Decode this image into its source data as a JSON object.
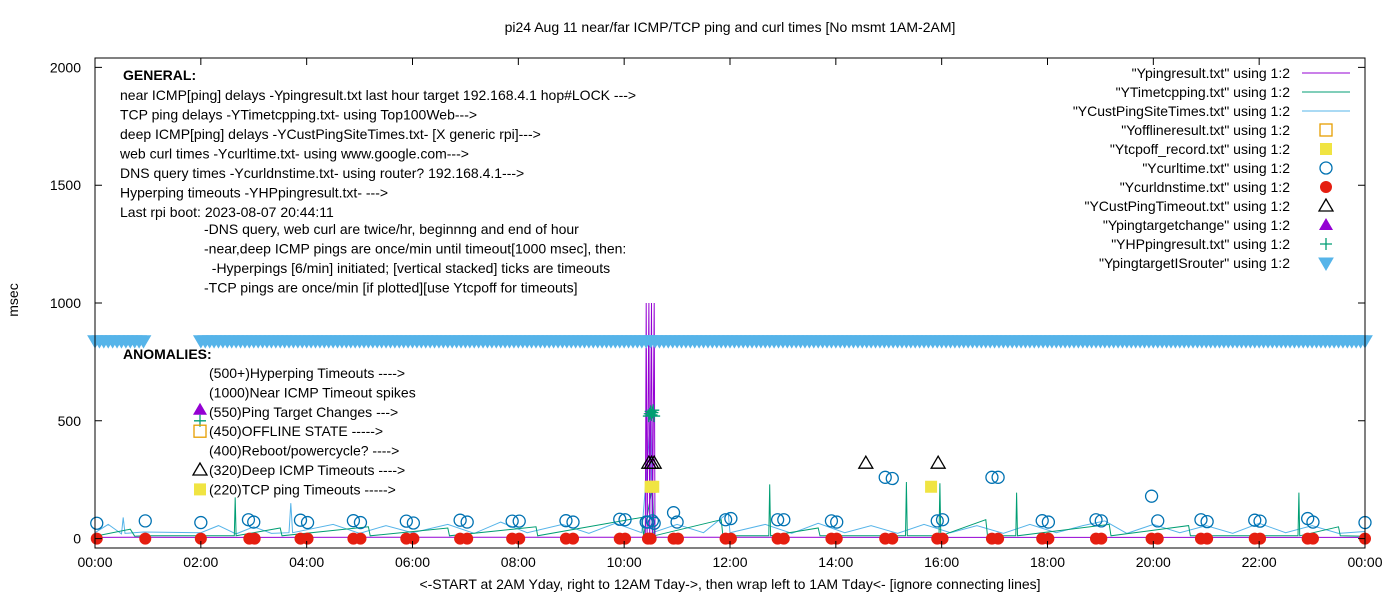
{
  "chart_data": {
    "type": "line",
    "title": "pi24 Aug 11  near/far ICMP/TCP ping and curl times [No msmt 1AM-2AM]",
    "xlabel": "<-START at 2AM Yday, right to 12AM Tday->, then wrap left to 1AM Tday<- [ignore connecting lines]",
    "ylabel": "msec",
    "xlim": [
      "00:00",
      "24:00"
    ],
    "ylim": [
      -40,
      2040
    ],
    "x_ticks": [
      "00:00",
      "02:00",
      "04:00",
      "06:00",
      "08:00",
      "10:00",
      "12:00",
      "14:00",
      "16:00",
      "18:00",
      "20:00",
      "22:00",
      "00:00"
    ],
    "y_ticks": [
      0,
      500,
      1000,
      1500,
      2000
    ],
    "grid": false,
    "legend_placement": "top-right",
    "series": [
      {
        "name": "\"Ypingresult.txt\" using 1:2",
        "style": "line",
        "color": "#9400d3",
        "points": [
          [
            "00:00",
            5
          ],
          [
            "00:55",
            6
          ],
          [
            "02:00",
            5
          ],
          [
            "06:00",
            6
          ],
          [
            "10:24",
            6
          ],
          [
            "10:25",
            1000
          ],
          [
            "10:26",
            6
          ],
          [
            "10:28",
            1000
          ],
          [
            "10:29",
            6
          ],
          [
            "10:31",
            1000
          ],
          [
            "10:32",
            6
          ],
          [
            "10:34",
            1000
          ],
          [
            "10:35",
            6
          ],
          [
            "16:00",
            5
          ],
          [
            "24:00",
            5
          ]
        ]
      },
      {
        "name": "\"YTimetcpping.txt\" using 1:2",
        "style": "line",
        "color": "#009e73",
        "points": [
          [
            "00:00",
            10
          ],
          [
            "00:40",
            40
          ],
          [
            "00:45",
            10
          ],
          [
            "00:55",
            12
          ],
          [
            "02:00",
            12
          ],
          [
            "02:38",
            12
          ],
          [
            "02:39",
            175
          ],
          [
            "02:40",
            12
          ],
          [
            "03:30",
            45
          ],
          [
            "03:32",
            12
          ],
          [
            "05:10",
            50
          ],
          [
            "05:12",
            12
          ],
          [
            "06:40",
            45
          ],
          [
            "06:42",
            12
          ],
          [
            "08:20",
            50
          ],
          [
            "08:22",
            12
          ],
          [
            "10:20",
            90
          ],
          [
            "10:22",
            12
          ],
          [
            "10:32",
            220
          ],
          [
            "10:34",
            12
          ],
          [
            "11:50",
            80
          ],
          [
            "11:52",
            12
          ],
          [
            "12:44",
            12
          ],
          [
            "12:45",
            230
          ],
          [
            "12:46",
            12
          ],
          [
            "13:40",
            45
          ],
          [
            "13:42",
            12
          ],
          [
            "15:19",
            12
          ],
          [
            "15:20",
            240
          ],
          [
            "15:21",
            12
          ],
          [
            "15:57",
            12
          ],
          [
            "15:58",
            235
          ],
          [
            "15:59",
            12
          ],
          [
            "16:50",
            80
          ],
          [
            "16:52",
            12
          ],
          [
            "17:24",
            12
          ],
          [
            "17:25",
            195
          ],
          [
            "17:26",
            12
          ],
          [
            "19:10",
            60
          ],
          [
            "19:12",
            12
          ],
          [
            "20:40",
            55
          ],
          [
            "20:42",
            12
          ],
          [
            "22:44",
            12
          ],
          [
            "22:45",
            195
          ],
          [
            "22:46",
            12
          ],
          [
            "23:30",
            50
          ],
          [
            "23:32",
            12
          ],
          [
            "24:00",
            10
          ]
        ]
      },
      {
        "name": "\"YCustPingSiteTimes.txt\" using 1:2",
        "style": "line",
        "color": "#56b4e9",
        "points": [
          [
            "00:00",
            25
          ],
          [
            "00:15",
            60
          ],
          [
            "00:30",
            20
          ],
          [
            "00:32",
            90
          ],
          [
            "00:34",
            22
          ],
          [
            "00:55",
            28
          ],
          [
            "02:00",
            25
          ],
          [
            "02:20",
            55
          ],
          [
            "02:40",
            20
          ],
          [
            "03:00",
            50
          ],
          [
            "03:20",
            22
          ],
          [
            "03:40",
            25
          ],
          [
            "03:42",
            150
          ],
          [
            "03:44",
            25
          ],
          [
            "04:30",
            60
          ],
          [
            "05:00",
            22
          ],
          [
            "05:30",
            55
          ],
          [
            "06:00",
            25
          ],
          [
            "06:40",
            60
          ],
          [
            "07:10",
            22
          ],
          [
            "07:40",
            70
          ],
          [
            "08:10",
            25
          ],
          [
            "08:50",
            60
          ],
          [
            "09:20",
            22
          ],
          [
            "09:50",
            65
          ],
          [
            "10:20",
            25
          ],
          [
            "10:30",
            500
          ],
          [
            "10:32",
            25
          ],
          [
            "11:00",
            60
          ],
          [
            "11:30",
            25
          ],
          [
            "11:58",
            110
          ],
          [
            "12:00",
            25
          ],
          [
            "12:40",
            60
          ],
          [
            "13:10",
            22
          ],
          [
            "13:40",
            65
          ],
          [
            "14:10",
            25
          ],
          [
            "14:40",
            55
          ],
          [
            "15:10",
            22
          ],
          [
            "15:40",
            60
          ],
          [
            "16:10",
            25
          ],
          [
            "16:40",
            55
          ],
          [
            "17:10",
            22
          ],
          [
            "17:40",
            60
          ],
          [
            "18:10",
            25
          ],
          [
            "18:40",
            55
          ],
          [
            "19:05",
            75
          ],
          [
            "19:30",
            22
          ],
          [
            "20:00",
            60
          ],
          [
            "20:30",
            25
          ],
          [
            "21:00",
            55
          ],
          [
            "21:30",
            22
          ],
          [
            "22:00",
            65
          ],
          [
            "22:30",
            25
          ],
          [
            "23:00",
            55
          ],
          [
            "23:30",
            22
          ],
          [
            "24:00",
            30
          ]
        ]
      },
      {
        "name": "\"Yofflineresult.txt\" using 1:2",
        "style": "open-square",
        "color": "#e69f00",
        "points": []
      },
      {
        "name": "\"Ytcpoff_record.txt\" using 1:2",
        "style": "filled-square",
        "color": "#f0e442",
        "points": [
          [
            "10:30",
            220
          ],
          [
            "10:33",
            220
          ],
          [
            "15:48",
            220
          ]
        ]
      },
      {
        "name": "\"Ycurltime.txt\" using 1:2",
        "style": "open-circle",
        "color": "#0072b2",
        "points": [
          [
            "00:02",
            65
          ],
          [
            "00:57",
            75
          ],
          [
            "02:00",
            68
          ],
          [
            "02:54",
            80
          ],
          [
            "03:00",
            70
          ],
          [
            "03:53",
            78
          ],
          [
            "04:01",
            68
          ],
          [
            "04:53",
            76
          ],
          [
            "05:01",
            68
          ],
          [
            "05:53",
            74
          ],
          [
            "06:01",
            66
          ],
          [
            "06:54",
            78
          ],
          [
            "07:02",
            70
          ],
          [
            "07:53",
            74
          ],
          [
            "08:01",
            74
          ],
          [
            "08:54",
            76
          ],
          [
            "09:02",
            70
          ],
          [
            "09:55",
            82
          ],
          [
            "10:01",
            80
          ],
          [
            "10:25",
            70
          ],
          [
            "10:27",
            70
          ],
          [
            "10:32",
            75
          ],
          [
            "10:34",
            65
          ],
          [
            "10:56",
            110
          ],
          [
            "11:00",
            70
          ],
          [
            "11:55",
            80
          ],
          [
            "12:01",
            85
          ],
          [
            "12:54",
            80
          ],
          [
            "13:01",
            80
          ],
          [
            "13:55",
            75
          ],
          [
            "14:01",
            70
          ],
          [
            "14:56",
            260
          ],
          [
            "15:04",
            255
          ],
          [
            "15:55",
            75
          ],
          [
            "16:01",
            80
          ],
          [
            "16:57",
            260
          ],
          [
            "17:04",
            260
          ],
          [
            "17:54",
            76
          ],
          [
            "18:01",
            70
          ],
          [
            "18:55",
            80
          ],
          [
            "19:01",
            75
          ],
          [
            "19:58",
            180
          ],
          [
            "20:05",
            75
          ],
          [
            "20:54",
            80
          ],
          [
            "21:01",
            72
          ],
          [
            "21:55",
            78
          ],
          [
            "22:01",
            74
          ],
          [
            "22:55",
            85
          ],
          [
            "23:01",
            70
          ],
          [
            "24:00",
            68
          ]
        ]
      },
      {
        "name": "\"Ycurldnstime.txt\" using 1:2",
        "style": "filled-circle",
        "color": "#e51e10",
        "points": [
          [
            "00:02",
            0
          ],
          [
            "00:57",
            0
          ],
          [
            "02:00",
            0
          ],
          [
            "02:55",
            0
          ],
          [
            "03:01",
            0
          ],
          [
            "03:53",
            0
          ],
          [
            "04:01",
            0
          ],
          [
            "04:53",
            0
          ],
          [
            "05:01",
            0
          ],
          [
            "05:53",
            0
          ],
          [
            "06:01",
            0
          ],
          [
            "06:54",
            0
          ],
          [
            "07:02",
            0
          ],
          [
            "07:53",
            0
          ],
          [
            "08:01",
            0
          ],
          [
            "08:54",
            0
          ],
          [
            "09:02",
            0
          ],
          [
            "09:55",
            0
          ],
          [
            "10:01",
            0
          ],
          [
            "10:27",
            0
          ],
          [
            "10:30",
            0
          ],
          [
            "10:56",
            0
          ],
          [
            "11:01",
            0
          ],
          [
            "11:55",
            0
          ],
          [
            "12:01",
            0
          ],
          [
            "12:54",
            0
          ],
          [
            "13:01",
            0
          ],
          [
            "13:55",
            0
          ],
          [
            "14:01",
            0
          ],
          [
            "14:56",
            0
          ],
          [
            "15:04",
            0
          ],
          [
            "15:55",
            0
          ],
          [
            "16:01",
            0
          ],
          [
            "16:57",
            0
          ],
          [
            "17:04",
            0
          ],
          [
            "17:54",
            0
          ],
          [
            "18:01",
            0
          ],
          [
            "18:55",
            0
          ],
          [
            "19:01",
            0
          ],
          [
            "19:58",
            0
          ],
          [
            "20:05",
            0
          ],
          [
            "20:54",
            0
          ],
          [
            "21:01",
            0
          ],
          [
            "21:55",
            0
          ],
          [
            "22:01",
            0
          ],
          [
            "22:55",
            0
          ],
          [
            "23:01",
            0
          ],
          [
            "24:00",
            0
          ]
        ]
      },
      {
        "name": "\"YCustPingTimeout.txt\" using 1:2",
        "style": "open-triangle",
        "color": "#000000",
        "points": [
          [
            "10:28",
            320
          ],
          [
            "10:31",
            320
          ],
          [
            "10:34",
            320
          ],
          [
            "14:34",
            320
          ],
          [
            "15:56",
            320
          ]
        ]
      },
      {
        "name": "\"Ypingtargetchange\" using 1:2",
        "style": "filled-triangle",
        "color": "#9400d3",
        "points": []
      },
      {
        "name": "\"YHPpingresult.txt\" using 1:2",
        "style": "plus",
        "color": "#009e73",
        "points": [
          [
            "10:28",
            520
          ],
          [
            "10:29",
            530
          ],
          [
            "10:30",
            540
          ],
          [
            "10:31",
            525
          ],
          [
            "10:32",
            535
          ],
          [
            "10:33",
            545
          ],
          [
            "10:34",
            520
          ]
        ]
      },
      {
        "name": "\"YpingtargetISrouter\" using 1:2",
        "style": "open-inverted-triangle",
        "color": "#56b4e9",
        "value": 840,
        "ranges": [
          [
            "00:00",
            "00:55"
          ],
          [
            "02:00",
            "24:00"
          ]
        ]
      }
    ],
    "annotations": {
      "general_heading": "GENERAL:",
      "general_lines": [
        "near ICMP[ping] delays -Ypingresult.txt last hour target 192.168.4.1 hop#LOCK --->",
        "TCP ping delays -YTimetcpping.txt- using Top100Web--->",
        "deep ICMP[ping] delays -YCustPingSiteTimes.txt- [X generic rpi]--->",
        "web curl times -Ycurltime.txt- using www.google.com--->",
        "DNS query times -Ycurldnstime.txt- using router? 192.168.4.1--->",
        "Hyperping timeouts -YHPpingresult.txt- --->",
        "Last rpi boot: 2023-08-07 20:44:11"
      ],
      "notes": [
        "-DNS query, web curl are twice/hr, beginnng and end of hour",
        "-near,deep ICMP pings are once/min until timeout[1000 msec], then:",
        "  -Hyperpings [6/min] initiated; [vertical stacked] ticks are timeouts",
        "-TCP pings are once/min [if plotted][use Ytcpoff for timeouts]"
      ],
      "anomalies_heading": "ANOMALIES:",
      "anomalies": [
        {
          "text": "(500+)Hyperping Timeouts ---->",
          "marker": ""
        },
        {
          "text": "(1000)Near ICMP Timeout spikes",
          "marker": ""
        },
        {
          "text": "(550)Ping Target Changes --->",
          "marker": "filled-triangle-plus"
        },
        {
          "text": "(450)OFFLINE STATE ----->",
          "marker": "open-square"
        },
        {
          "text": "(400)Reboot/powercycle? ---->",
          "marker": ""
        },
        {
          "text": "(320)Deep ICMP Timeouts ---->",
          "marker": "open-triangle"
        },
        {
          "text": "(220)TCP ping Timeouts ----->",
          "marker": "filled-square"
        }
      ]
    }
  }
}
